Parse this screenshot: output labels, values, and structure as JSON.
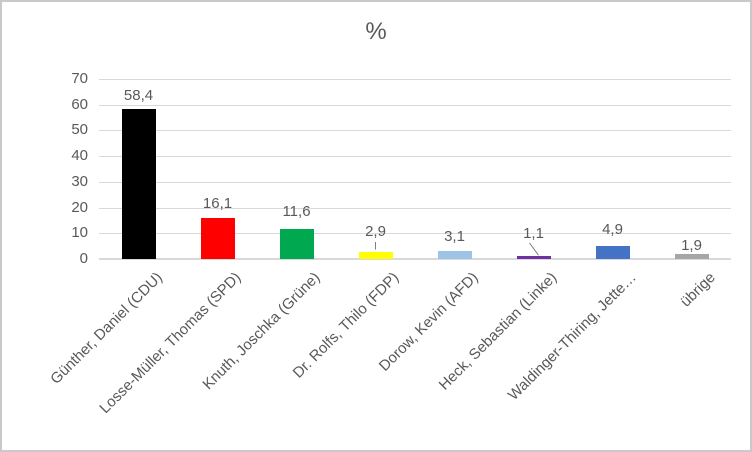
{
  "window": {
    "background": "#FFFFFF",
    "border_color": "#C9C9C9"
  },
  "chart_data": {
    "type": "bar",
    "title": "%",
    "categories": [
      "Günther, Daniel (CDU)",
      "Losse-Müller, Thomas (SPD)",
      "Knuth, Joschka (Grüne)",
      "Dr. Rolfs, Thilo (FDP)",
      "Dorow, Kevin (AFD)",
      "Heck, Sebastian (Linke)",
      "Waldinger-Thiring, Jette…",
      "übrige"
    ],
    "values": [
      58.4,
      16.1,
      11.6,
      2.9,
      3.1,
      1.1,
      4.9,
      1.9
    ],
    "value_labels": [
      "58,4",
      "16,1",
      "11,6",
      "2,9",
      "3,1",
      "1,1",
      "4,9",
      "1,9"
    ],
    "bar_colors": [
      "#000000",
      "#FF0000",
      "#00A94F",
      "#FFFF00",
      "#9DC3E6",
      "#7030A0",
      "#4472C4",
      "#A6A6A6"
    ],
    "xlabel": "",
    "ylabel": "",
    "ylim": [
      0,
      70
    ],
    "yticks": [
      0,
      10,
      20,
      30,
      40,
      50,
      60,
      70
    ],
    "ytick_labels": [
      "0",
      "10",
      "20",
      "30",
      "40",
      "50",
      "60",
      "70"
    ],
    "grid": true,
    "legend": false,
    "callout_label_indexes": [
      3,
      5
    ],
    "text_color": "#595959",
    "gridline_color": "#D9D9D9",
    "leader_line_color": "#7F7F7F"
  }
}
